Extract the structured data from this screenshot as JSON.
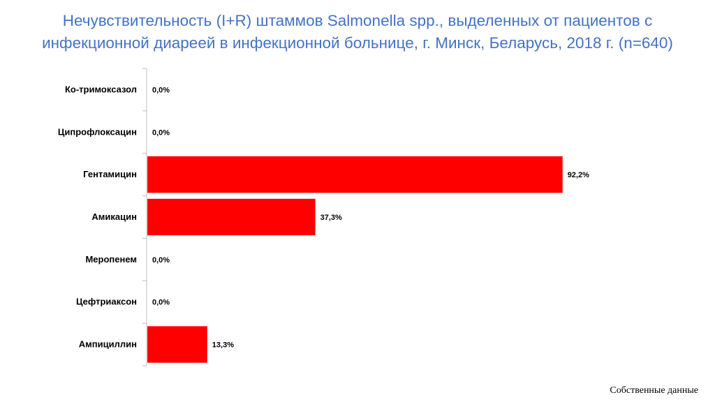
{
  "chart_data": {
    "type": "bar",
    "orientation": "horizontal",
    "title_lines": [
      "Нечувствительность (I+R) штаммов Salmonella spp., выделенных от пациентов с",
      "инфекционной диареей в инфекционной больнице, г. Минск, Беларусь, 2018 г. (n=640)"
    ],
    "categories": [
      "Ко-тримоксазол",
      "Ципрофлоксацин",
      "Гентамицин",
      "Амикацин",
      "Меропенем",
      "Цефтриаксон",
      "Ампициллин"
    ],
    "values": [
      0.0,
      0.0,
      92.2,
      37.3,
      0.0,
      0.0,
      13.3
    ],
    "value_labels": [
      "0,0%",
      "0,0%",
      "92,2%",
      "37,3%",
      "0,0%",
      "0,0%",
      "13,3%"
    ],
    "xlim": [
      0,
      100
    ],
    "bar_color": "#ff0000",
    "grid": false,
    "legend": "none"
  },
  "source_note": "Собственные данные"
}
